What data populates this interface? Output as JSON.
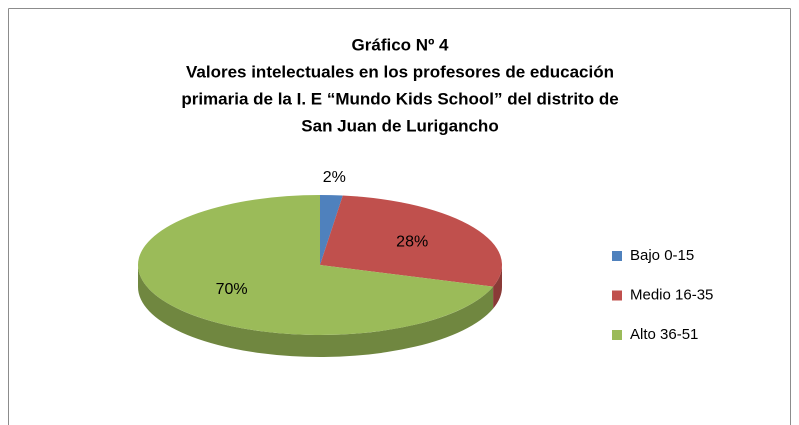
{
  "chart_data": {
    "type": "pie",
    "title": [
      "Gráfico Nº 4",
      "Valores intelectuales en los profesores de educación",
      "primaria de la I. E “Mundo Kids School” del distrito de",
      "San Juan de Lurigancho"
    ],
    "categories": [
      "Bajo 0-15",
      "Medio 16-35",
      "Alto 36-51"
    ],
    "values": [
      2,
      28,
      70
    ],
    "value_labels": [
      "2%",
      "28%",
      "70%"
    ],
    "colors": [
      "#4f81bd",
      "#c0504d",
      "#9bbb59"
    ],
    "legend": "right"
  }
}
